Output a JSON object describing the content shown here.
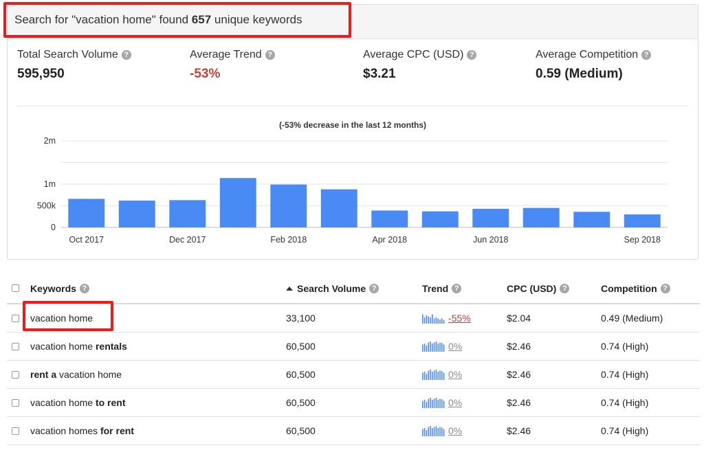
{
  "header": {
    "prefix": "Search for \"vacation home\" found ",
    "count": "657",
    "suffix": " unique keywords"
  },
  "stats": [
    {
      "label": "Total Search Volume",
      "value": "595,950",
      "negative": false
    },
    {
      "label": "Average Trend",
      "value": "-53%",
      "negative": true
    },
    {
      "label": "Average CPC (USD)",
      "value": "$3.21",
      "negative": false
    },
    {
      "label": "Average Competition",
      "value": "0.59 (Medium)",
      "negative": false
    }
  ],
  "help_icon_glyph": "?",
  "chart_data": {
    "type": "bar",
    "title": "(-53% decrease in the last 12 months)",
    "categories": [
      "Oct 2017",
      "Nov 2017",
      "Dec 2017",
      "Jan 2018",
      "Feb 2018",
      "Mar 2018",
      "Apr 2018",
      "May 2018",
      "Jun 2018",
      "Jul 2018",
      "Aug 2018",
      "Sep 2018"
    ],
    "values": [
      660000,
      620000,
      630000,
      1140000,
      990000,
      880000,
      390000,
      370000,
      430000,
      450000,
      360000,
      300000
    ],
    "tick_labels_x": [
      "Oct 2017",
      "",
      "Dec 2017",
      "",
      "Feb 2018",
      "",
      "Apr 2018",
      "",
      "Jun 2018",
      "",
      "",
      "Sep 2018"
    ],
    "y_ticks": [
      {
        "value": 0,
        "label": "0"
      },
      {
        "value": 500000,
        "label": "500k"
      },
      {
        "value": 1000000,
        "label": "1m"
      },
      {
        "value": 1500000,
        "label": ""
      },
      {
        "value": 2000000,
        "label": "2m"
      }
    ],
    "ylim": [
      0,
      2000000
    ],
    "bar_color": "#4a8af4",
    "grid": true
  },
  "table": {
    "columns": {
      "keywords": "Keywords",
      "volume": "Search Volume",
      "trend": "Trend",
      "cpc": "CPC (USD)",
      "competition": "Competition"
    },
    "rows": [
      {
        "keyword": [
          {
            "t": "vacation home",
            "b": false
          }
        ],
        "volume": "33,100",
        "trend": "-55%",
        "trend_negative": true,
        "spark": [
          0.9,
          0.6,
          0.8,
          0.7,
          0.6,
          0.9,
          0.5,
          0.6,
          0.5,
          0.4,
          0.5,
          0.35
        ],
        "cpc": "$2.04",
        "competition": "0.49 (Medium)",
        "highlighted": true
      },
      {
        "keyword": [
          {
            "t": "vacation home ",
            "b": false
          },
          {
            "t": "rentals",
            "b": true
          }
        ],
        "volume": "60,500",
        "trend": "0%",
        "trend_negative": false,
        "spark": [
          0.7,
          0.8,
          0.6,
          0.9,
          1.0,
          0.8,
          0.9,
          1.0,
          0.8,
          0.9,
          0.85,
          0.7
        ],
        "cpc": "$2.46",
        "competition": "0.74 (High)",
        "highlighted": false
      },
      {
        "keyword": [
          {
            "t": "rent a",
            "b": true
          },
          {
            "t": " vacation home",
            "b": false
          }
        ],
        "volume": "60,500",
        "trend": "0%",
        "trend_negative": false,
        "spark": [
          0.7,
          0.8,
          0.6,
          0.9,
          1.0,
          0.8,
          0.9,
          1.0,
          0.8,
          0.9,
          0.85,
          0.7
        ],
        "cpc": "$2.46",
        "competition": "0.74 (High)",
        "highlighted": false
      },
      {
        "keyword": [
          {
            "t": "vacation home ",
            "b": false
          },
          {
            "t": "to rent",
            "b": true
          }
        ],
        "volume": "60,500",
        "trend": "0%",
        "trend_negative": false,
        "spark": [
          0.7,
          0.8,
          0.6,
          0.9,
          1.0,
          0.8,
          0.9,
          1.0,
          0.8,
          0.9,
          0.85,
          0.7
        ],
        "cpc": "$2.46",
        "competition": "0.74 (High)",
        "highlighted": false
      },
      {
        "keyword": [
          {
            "t": "vacation homes",
            "b": false
          },
          {
            "t": " for rent",
            "b": true
          }
        ],
        "volume": "60,500",
        "trend": "0%",
        "trend_negative": false,
        "spark": [
          0.7,
          0.8,
          0.6,
          0.9,
          1.0,
          0.8,
          0.9,
          1.0,
          0.8,
          0.9,
          0.85,
          0.7
        ],
        "cpc": "$2.46",
        "competition": "0.74 (High)",
        "highlighted": false
      }
    ]
  },
  "colors": {
    "negative": "#c0413a",
    "zero_trend": "#8a8a8a",
    "highlight": "#ec1c1c",
    "spark": "#4a8af4"
  }
}
